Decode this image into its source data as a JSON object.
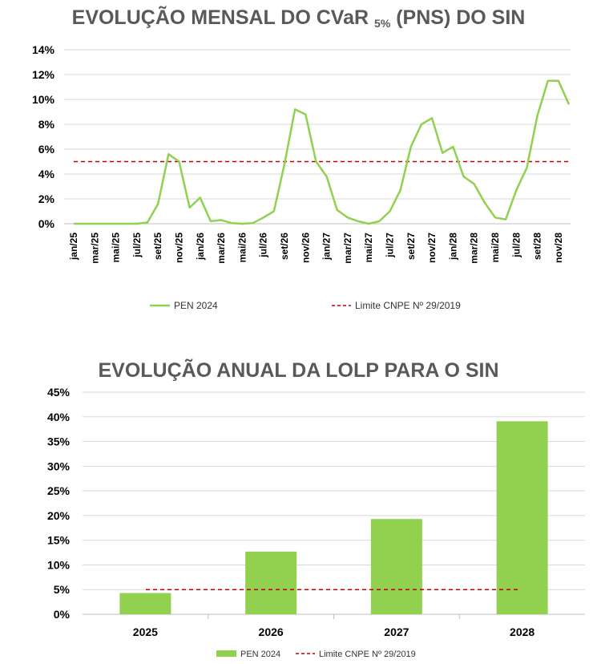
{
  "chart_data": [
    {
      "type": "line",
      "title_main": "EVOLUÇÃO MENSAL DO CVaR",
      "title_sub": "5%",
      "title_end": "(PNS) DO SIN",
      "ylim": [
        0,
        14
      ],
      "yticks": [
        "0%",
        "2%",
        "4%",
        "6%",
        "8%",
        "10%",
        "12%",
        "14%"
      ],
      "x": [
        "jan/25",
        "fev/25",
        "mar/25",
        "abr/25",
        "mai/25",
        "jun/25",
        "jul/25",
        "ago/25",
        "set/25",
        "out/25",
        "nov/25",
        "dez/25",
        "jan/26",
        "fev/26",
        "mar/26",
        "abr/26",
        "mai/26",
        "jun/26",
        "jul/26",
        "ago/26",
        "set/26",
        "out/26",
        "nov/26",
        "dez/26",
        "jan/27",
        "fev/27",
        "mar/27",
        "abr/27",
        "mai/27",
        "jun/27",
        "jul/27",
        "ago/27",
        "set/27",
        "out/27",
        "nov/27",
        "dez/27",
        "jan/28",
        "fev/28",
        "mar/28",
        "abr/28",
        "mai/28",
        "jun/28",
        "jul/28",
        "ago/28",
        "set/28",
        "out/28",
        "nov/28",
        "dez/28"
      ],
      "x_tick_labels": [
        "jan/25",
        "mar/25",
        "mai/25",
        "jul/25",
        "set/25",
        "nov/25",
        "jan/26",
        "mar/26",
        "mai/26",
        "jul/26",
        "set/26",
        "nov/26",
        "jan/27",
        "mar/27",
        "mai/27",
        "jul/27",
        "set/27",
        "nov/27",
        "jan/28",
        "mar/28",
        "mai/28",
        "jul/28",
        "set/28",
        "nov/28"
      ],
      "series": [
        {
          "name": "PEN 2024",
          "color": "#92D050",
          "values": [
            0,
            0,
            0,
            0,
            0,
            0,
            0,
            0.1,
            1.6,
            5.6,
            5.0,
            1.3,
            2.1,
            0.2,
            0.3,
            0.05,
            0,
            0.05,
            0.5,
            1.0,
            4.8,
            9.2,
            8.8,
            5.0,
            3.8,
            1.1,
            0.5,
            0.2,
            0,
            0.2,
            1.0,
            2.7,
            6.2,
            8.0,
            8.5,
            5.7,
            6.2,
            3.8,
            3.2,
            1.7,
            0.5,
            0.35,
            2.7,
            4.5,
            8.7,
            11.5,
            11.5,
            9.6
          ]
        },
        {
          "name": "Limite CNPE Nº 29/2019",
          "color": "#C00000",
          "dashed": true,
          "value": 5
        }
      ],
      "legend": "bottom",
      "grid": true
    },
    {
      "type": "bar",
      "title": "EVOLUÇÃO  ANUAL DA LOLP PARA O SIN",
      "categories": [
        "2025",
        "2026",
        "2027",
        "2028"
      ],
      "ylim": [
        0,
        45
      ],
      "yticks": [
        "0%",
        "5%",
        "10%",
        "15%",
        "20%",
        "25%",
        "30%",
        "35%",
        "40%",
        "45%"
      ],
      "series": [
        {
          "name": "PEN 2024",
          "color": "#92D050",
          "values": [
            4.3,
            12.7,
            19.3,
            39.1
          ]
        },
        {
          "name": "Limite CNPE Nº 29/2019",
          "color": "#C00000",
          "dashed": true,
          "value": 5
        }
      ],
      "legend": "bottom",
      "grid": true
    }
  ]
}
